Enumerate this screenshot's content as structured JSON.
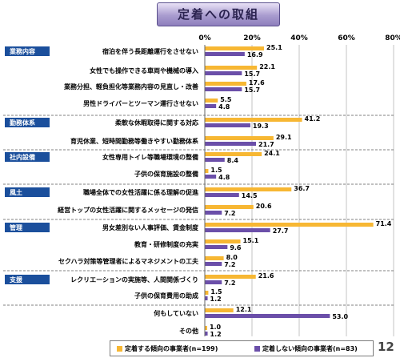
{
  "title": "定着への取組",
  "page_number": "12",
  "colors": {
    "series1": "#f7b733",
    "series2": "#6b4fa9",
    "category_bg": "#1b4f9c"
  },
  "chart_data": {
    "type": "bar",
    "orientation": "horizontal",
    "xlim": [
      0,
      80
    ],
    "x_ticks": [
      "0%",
      "20%",
      "40%",
      "60%",
      "80%"
    ],
    "groups": [
      {
        "name": "業務内容",
        "items": [
          0,
          1,
          2,
          3
        ]
      },
      {
        "name": "勤務体系",
        "items": [
          4,
          5
        ]
      },
      {
        "name": "社内設備",
        "items": [
          6,
          7
        ]
      },
      {
        "name": "風土",
        "items": [
          8,
          9
        ]
      },
      {
        "name": "管理",
        "items": [
          10,
          11,
          12
        ]
      },
      {
        "name": "支援",
        "items": [
          13,
          14
        ]
      },
      {
        "name": "",
        "items": [
          15,
          16
        ]
      }
    ],
    "categories": [
      "宿泊を伴う長距離運行をさせない",
      "女性でも操作できる車両や機械の導入",
      "業務分担、軽負担化等業務内容の見直し・改善",
      "男性ドライバーとツーマン運行させない",
      "柔軟な休暇取得に関する対応",
      "育児休業、短時間勤務等働きやすい勤務体系",
      "女性専用トイレ等職場環境の整備",
      "子供の保育施設の整備",
      "職場全体での女性活躍に係る理解の促進",
      "経営トップの女性活躍に関するメッセージの発信",
      "男女差別ない人事評価、賃金制度",
      "教育・研修制度の充実",
      "セクハラ対策等管理者によるマネジメントの工夫",
      "レクリエーションの実施等、人間関係づくり",
      "子供の保育費用の助成",
      "何もしていない",
      "その他"
    ],
    "series": [
      {
        "name": "定着する傾向の事業者(n=199)",
        "values": [
          25.1,
          22.1,
          17.6,
          5.5,
          41.2,
          29.1,
          24.1,
          1.5,
          36.7,
          20.6,
          71.4,
          15.1,
          8.0,
          21.6,
          1.5,
          12.1,
          1.0
        ]
      },
      {
        "name": "定着しない傾向の事業者(n=83)",
        "values": [
          16.9,
          15.7,
          15.7,
          4.8,
          19.3,
          21.7,
          8.4,
          4.8,
          14.5,
          7.2,
          27.7,
          9.6,
          7.2,
          7.2,
          1.2,
          53.0,
          1.2
        ]
      }
    ],
    "value_labels": [
      [
        "25.1",
        "22.1",
        "17.6",
        "5.5",
        "41.2",
        "29.1",
        "24.1",
        "1.5",
        "36.7",
        "20.6",
        "71.4",
        "15.1",
        "8.0",
        "21.6",
        "1.5",
        "12.1",
        "1.0"
      ],
      [
        "16.9",
        "15.7",
        "15.7",
        "4.8",
        "19.3",
        "21.7",
        "8.4",
        "4.8",
        "14.5",
        "7.2",
        "27.7",
        "9.6",
        "7.2",
        "7.2",
        "1.2",
        "53.0",
        "1.2"
      ]
    ]
  }
}
